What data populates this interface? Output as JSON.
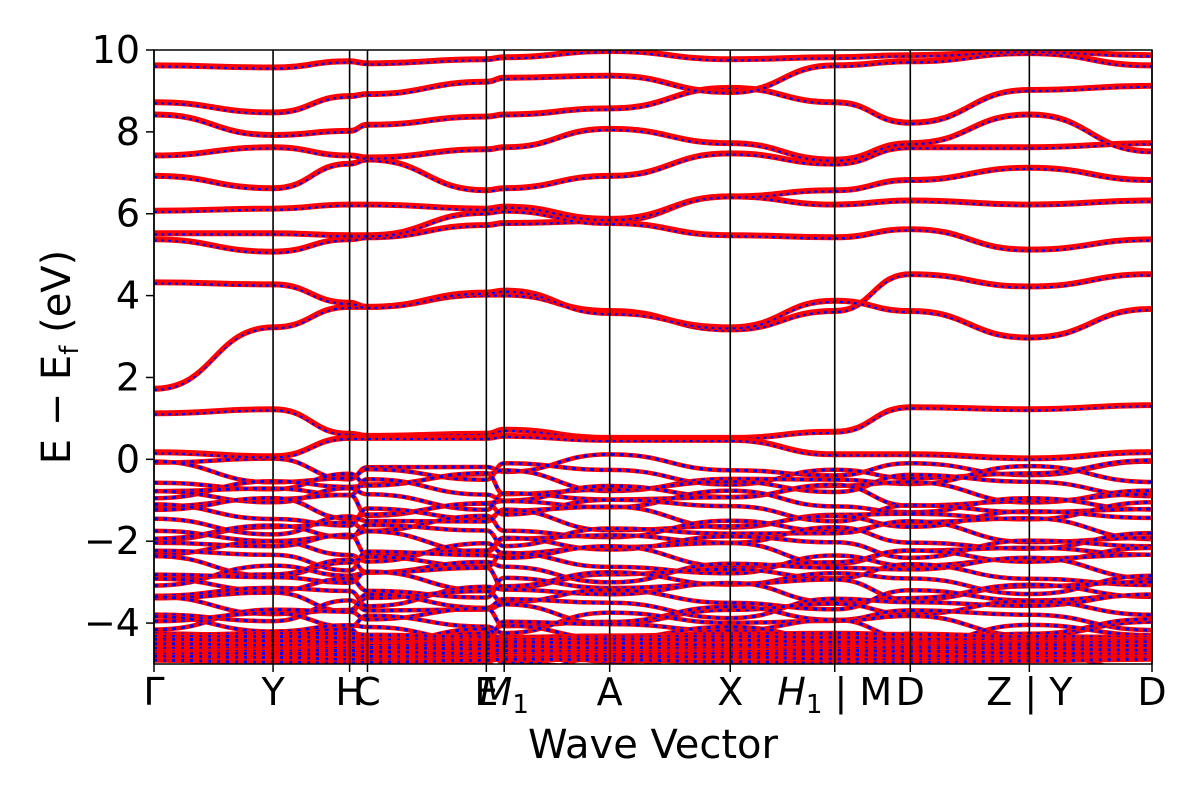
{
  "chart_data": {
    "type": "line",
    "title": "",
    "xlabel": "Wave Vector",
    "ylabel": "E − E_f (eV)",
    "ylabel_parts": {
      "main": "E − E",
      "sub": "f",
      "unit": " (eV)"
    },
    "ylim": [
      -5,
      10
    ],
    "yticks": [
      -4,
      -2,
      0,
      2,
      4,
      6,
      8,
      10
    ],
    "ytick_labels": [
      "−4",
      "−2",
      "0",
      "2",
      "4",
      "6",
      "8",
      "10"
    ],
    "xlim": [
      0,
      1
    ],
    "kpoints": [
      {
        "label": "Γ",
        "x": 0.0
      },
      {
        "label": "Y",
        "x": 0.1193
      },
      {
        "label": "H",
        "x": 0.196
      },
      {
        "label": "C",
        "x": 0.2139
      },
      {
        "label": "E",
        "x": 0.333
      },
      {
        "label": "M1",
        "x": 0.3509,
        "base": "M",
        "sub": "1"
      },
      {
        "label": "A",
        "x": 0.4566
      },
      {
        "label": "X",
        "x": 0.5774
      },
      {
        "label": "H1 | M",
        "x": 0.6821,
        "base": "H",
        "sub": "1",
        "suffix": " | M"
      },
      {
        "label": "D",
        "x": 0.7578
      },
      {
        "label": "Z | Y",
        "x": 0.8771
      },
      {
        "label": "D",
        "x": 1.0
      }
    ],
    "grid": false,
    "legend": "none",
    "series_colors": {
      "spin_up": "#ff0000",
      "spin_down": "#0000ff"
    },
    "bands_above_fermi": [
      {
        "x": [
          0,
          0.1193,
          0.196,
          0.2139,
          0.333,
          0.3509,
          0.4566,
          0.5774,
          0.6821,
          0.7578,
          0.8771,
          1.0
        ],
        "y": [
          1.7,
          3.2,
          3.7,
          3.7,
          4.0,
          4.0,
          3.6,
          3.15,
          3.6,
          4.5,
          4.2,
          4.5
        ]
      },
      {
        "x": [
          0,
          0.1193,
          0.196,
          0.2139,
          0.333,
          0.3509,
          0.4566,
          0.5774,
          0.6821,
          0.7578,
          0.8771,
          1.0
        ],
        "y": [
          4.3,
          4.25,
          3.8,
          3.7,
          4.05,
          4.1,
          3.55,
          3.2,
          3.85,
          3.6,
          2.95,
          3.65
        ]
      },
      {
        "x": [
          0,
          0.1193,
          0.196,
          0.2139,
          0.333,
          0.3509,
          0.4566,
          0.5774,
          0.6821,
          0.7578,
          0.8771,
          1.0
        ],
        "y": [
          1.1,
          1.2,
          0.6,
          0.55,
          0.6,
          0.7,
          0.5,
          0.5,
          0.65,
          1.25,
          1.2,
          1.3
        ]
      },
      {
        "x": [
          0,
          0.1193,
          0.196,
          0.2139,
          0.333,
          0.3509,
          0.4566,
          0.5774,
          0.6821,
          0.7578,
          0.8771,
          1.0
        ],
        "y": [
          0.15,
          0.05,
          0.5,
          0.5,
          0.5,
          0.55,
          0.45,
          0.45,
          0.1,
          0.1,
          0.0,
          0.15
        ]
      },
      {
        "x": [
          0,
          0.1193,
          0.196,
          0.2139,
          0.333,
          0.3509,
          0.4566,
          0.5774,
          0.6821,
          0.7578,
          0.8771,
          1.0
        ],
        "y": [
          5.35,
          5.05,
          5.35,
          5.4,
          5.7,
          5.75,
          5.8,
          6.4,
          6.2,
          6.3,
          6.2,
          6.3
        ]
      },
      {
        "x": [
          0,
          0.1193,
          0.196,
          0.2139,
          0.333,
          0.3509,
          0.4566,
          0.5774,
          0.6821,
          0.7578,
          0.8771,
          1.0
        ],
        "y": [
          5.5,
          5.5,
          5.45,
          5.45,
          6.0,
          6.05,
          5.75,
          5.45,
          5.4,
          5.6,
          5.1,
          5.35
        ]
      },
      {
        "x": [
          0,
          0.1193,
          0.196,
          0.2139,
          0.333,
          0.3509,
          0.4566,
          0.5774,
          0.6821,
          0.7578,
          0.8771,
          1.0
        ],
        "y": [
          6.05,
          6.1,
          6.2,
          6.2,
          6.1,
          6.15,
          5.85,
          6.4,
          6.55,
          6.8,
          7.1,
          6.8
        ]
      },
      {
        "x": [
          0,
          0.1193,
          0.196,
          0.2139,
          0.333,
          0.3509,
          0.4566,
          0.5774,
          0.6821,
          0.7578,
          0.8771,
          1.0
        ],
        "y": [
          6.9,
          6.6,
          7.2,
          7.3,
          6.55,
          6.6,
          6.9,
          7.45,
          7.2,
          7.6,
          7.6,
          7.7
        ]
      },
      {
        "x": [
          0,
          0.1193,
          0.196,
          0.2139,
          0.333,
          0.3509,
          0.4566,
          0.5774,
          0.6821,
          0.7578,
          0.8771,
          1.0
        ],
        "y": [
          7.4,
          7.6,
          7.4,
          7.35,
          7.55,
          7.6,
          8.05,
          7.7,
          7.3,
          7.7,
          8.4,
          7.5
        ]
      },
      {
        "x": [
          0,
          0.1193,
          0.196,
          0.2139,
          0.333,
          0.3509,
          0.4566,
          0.5774,
          0.6821,
          0.7578,
          0.8771,
          1.0
        ],
        "y": [
          8.4,
          7.9,
          8.0,
          8.15,
          8.35,
          8.4,
          8.55,
          9.05,
          8.7,
          8.2,
          9.0,
          9.1
        ]
      },
      {
        "x": [
          0,
          0.1193,
          0.196,
          0.2139,
          0.333,
          0.3509,
          0.4566,
          0.5774,
          0.6821,
          0.7578,
          0.8771,
          1.0
        ],
        "y": [
          8.7,
          8.45,
          8.85,
          8.9,
          9.2,
          9.3,
          9.35,
          8.95,
          9.6,
          9.7,
          9.9,
          9.6
        ]
      },
      {
        "x": [
          0,
          0.1193,
          0.196,
          0.2139,
          0.333,
          0.3509,
          0.4566,
          0.5774,
          0.6821,
          0.7578,
          0.8771,
          1.0
        ],
        "y": [
          9.6,
          9.55,
          9.7,
          9.65,
          9.75,
          9.8,
          9.95,
          9.75,
          9.8,
          9.85,
          9.95,
          9.85
        ]
      }
    ],
    "valence_manifold": {
      "ymin": -5.0,
      "ymax": -0.2,
      "note_bands": "dense overlapping bands below the Fermi level"
    }
  }
}
